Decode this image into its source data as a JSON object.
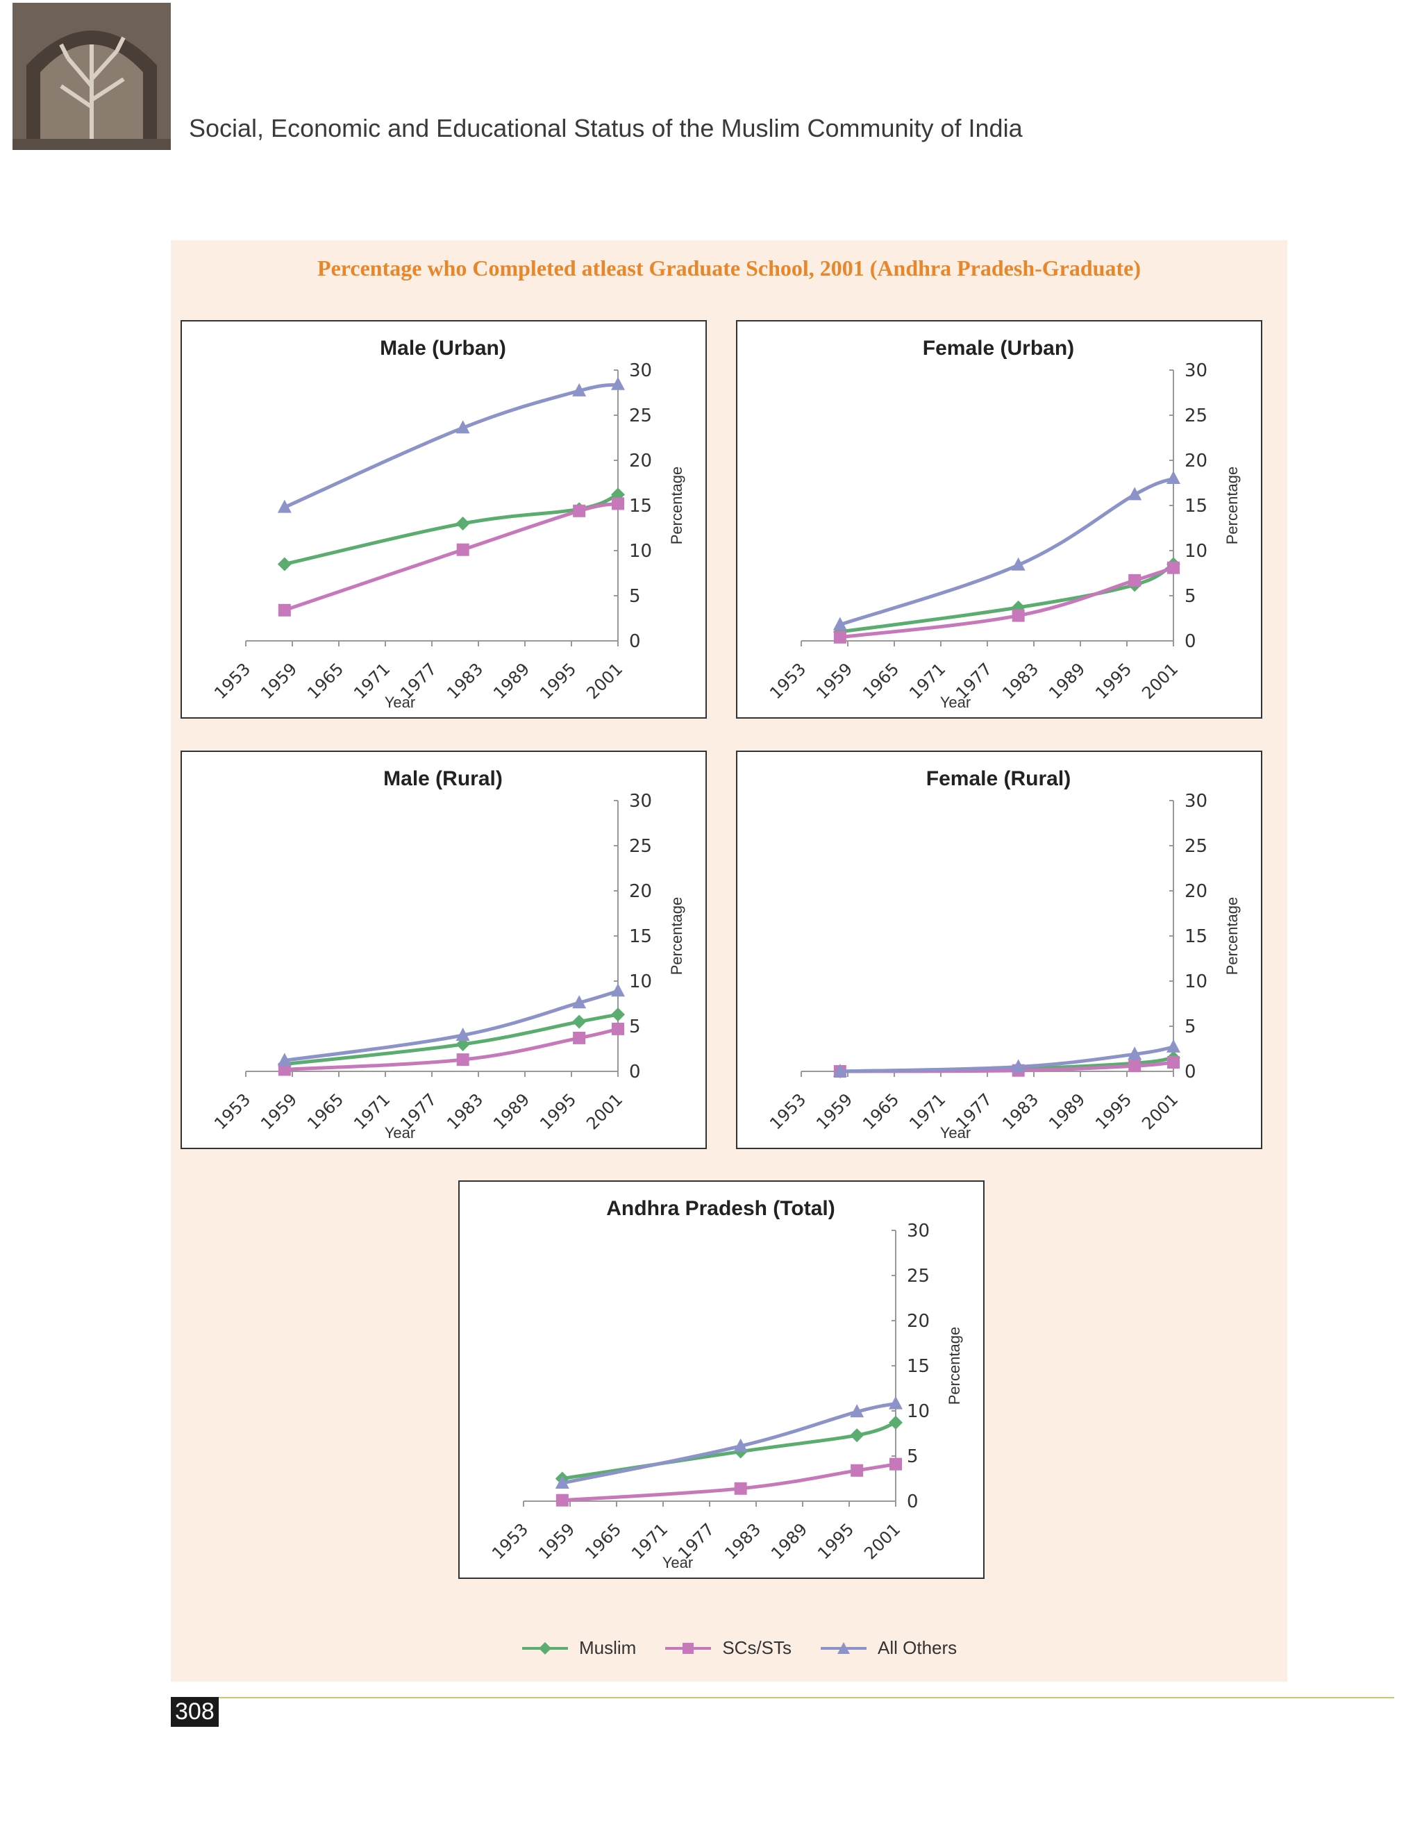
{
  "running_head": "Social, Economic and Educational Status of the Muslim Community of India",
  "figure_title": "Percentage who Completed atleast Graduate School, 2001 (Andhra Pradesh-Graduate)",
  "page_number": "308",
  "colors": {
    "muslim": "#5aad6e",
    "scst": "#c778bb",
    "others": "#8c93c9",
    "title": "#e8862a"
  },
  "legend": [
    {
      "name": "Muslim",
      "marker": "diamond",
      "color": "#5aad6e"
    },
    {
      "name": "SCs/STs",
      "marker": "square",
      "color": "#c778bb"
    },
    {
      "name": "All Others",
      "marker": "triangle",
      "color": "#8c93c9"
    }
  ],
  "chart_data": [
    {
      "type": "line",
      "title": "Male (Urban)",
      "xlabel": "Year",
      "ylabel": "Percentage",
      "x_ticks": [
        "1953",
        "1959",
        "1965",
        "1971",
        "1977",
        "1983",
        "1989",
        "1995",
        "2001"
      ],
      "y_ticks": [
        "0",
        "5",
        "10",
        "15",
        "20",
        "25",
        "30"
      ],
      "xlim": [
        1953,
        2001
      ],
      "ylim": [
        0,
        30
      ],
      "series": [
        {
          "name": "Muslim",
          "x": [
            1958,
            1981,
            1996,
            2001
          ],
          "y": [
            8.5,
            13,
            14.6,
            16.2
          ]
        },
        {
          "name": "SCs/STs",
          "x": [
            1958,
            1981,
            1996,
            2001
          ],
          "y": [
            3.4,
            10.1,
            14.4,
            15.2
          ]
        },
        {
          "name": "All Others",
          "x": [
            1958,
            1981,
            1996,
            2001
          ],
          "y": [
            14.8,
            23.6,
            27.7,
            28.4
          ]
        }
      ]
    },
    {
      "type": "line",
      "title": "Female (Urban)",
      "xlabel": "Year",
      "ylabel": "Percentage",
      "x_ticks": [
        "1953",
        "1959",
        "1965",
        "1971",
        "1977",
        "1983",
        "1989",
        "1995",
        "2001"
      ],
      "y_ticks": [
        "0",
        "5",
        "10",
        "15",
        "20",
        "25",
        "30"
      ],
      "xlim": [
        1953,
        2001
      ],
      "ylim": [
        0,
        30
      ],
      "series": [
        {
          "name": "Muslim",
          "x": [
            1958,
            1981,
            1996,
            2001
          ],
          "y": [
            1.0,
            3.7,
            6.2,
            8.5
          ]
        },
        {
          "name": "SCs/STs",
          "x": [
            1958,
            1981,
            1996,
            2001
          ],
          "y": [
            0.4,
            2.8,
            6.7,
            8.1
          ]
        },
        {
          "name": "All Others",
          "x": [
            1958,
            1981,
            1996,
            2001
          ],
          "y": [
            1.8,
            8.4,
            16.2,
            18.0
          ]
        }
      ]
    },
    {
      "type": "line",
      "title": "Male (Rural)",
      "xlabel": "Year",
      "ylabel": "Percentage",
      "x_ticks": [
        "1953",
        "1959",
        "1965",
        "1971",
        "1977",
        "1983",
        "1989",
        "1995",
        "2001"
      ],
      "y_ticks": [
        "0",
        "5",
        "10",
        "15",
        "20",
        "25",
        "30"
      ],
      "xlim": [
        1953,
        2001
      ],
      "ylim": [
        0,
        30
      ],
      "series": [
        {
          "name": "Muslim",
          "x": [
            1958,
            1981,
            1996,
            2001
          ],
          "y": [
            0.8,
            3.0,
            5.5,
            6.3
          ]
        },
        {
          "name": "SCs/STs",
          "x": [
            1958,
            1981,
            1996,
            2001
          ],
          "y": [
            0.2,
            1.3,
            3.7,
            4.7
          ]
        },
        {
          "name": "All Others",
          "x": [
            1958,
            1981,
            1996,
            2001
          ],
          "y": [
            1.2,
            4.0,
            7.6,
            8.9
          ]
        }
      ]
    },
    {
      "type": "line",
      "title": "Female (Rural)",
      "xlabel": "Year",
      "ylabel": "Percentage",
      "x_ticks": [
        "1953",
        "1959",
        "1965",
        "1971",
        "1977",
        "1983",
        "1989",
        "1995",
        "2001"
      ],
      "y_ticks": [
        "0",
        "5",
        "10",
        "15",
        "20",
        "25",
        "30"
      ],
      "xlim": [
        1953,
        2001
      ],
      "ylim": [
        0,
        30
      ],
      "series": [
        {
          "name": "Muslim",
          "x": [
            1958,
            1981,
            1996,
            2001
          ],
          "y": [
            0.0,
            0.3,
            0.9,
            1.5
          ]
        },
        {
          "name": "SCs/STs",
          "x": [
            1958,
            1981,
            1996,
            2001
          ],
          "y": [
            0.0,
            0.1,
            0.6,
            1.0
          ]
        },
        {
          "name": "All Others",
          "x": [
            1958,
            1981,
            1996,
            2001
          ],
          "y": [
            0.0,
            0.5,
            1.9,
            2.7
          ]
        }
      ]
    },
    {
      "type": "line",
      "title": "Andhra Pradesh (Total)",
      "xlabel": "Year",
      "ylabel": "Percentage",
      "x_ticks": [
        "1953",
        "1959",
        "1965",
        "1971",
        "1977",
        "1983",
        "1989",
        "1995",
        "2001"
      ],
      "y_ticks": [
        "0",
        "5",
        "10",
        "15",
        "20",
        "25",
        "30"
      ],
      "xlim": [
        1953,
        2001
      ],
      "ylim": [
        0,
        30
      ],
      "series": [
        {
          "name": "Muslim",
          "x": [
            1958,
            1981,
            1996,
            2001
          ],
          "y": [
            2.5,
            5.5,
            7.3,
            8.7
          ]
        },
        {
          "name": "SCs/STs",
          "x": [
            1958,
            1981,
            1996,
            2001
          ],
          "y": [
            0.1,
            1.4,
            3.4,
            4.1
          ]
        },
        {
          "name": "All Others",
          "x": [
            1958,
            1981,
            1996,
            2001
          ],
          "y": [
            2.0,
            6.1,
            9.9,
            10.8
          ]
        }
      ]
    }
  ]
}
